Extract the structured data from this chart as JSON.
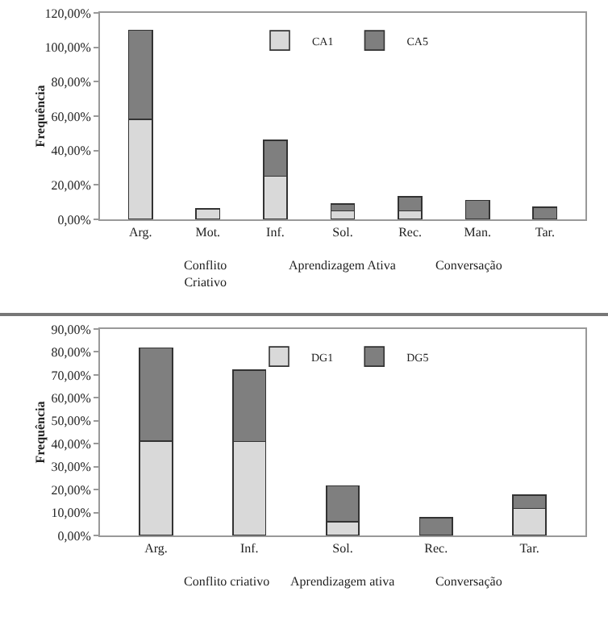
{
  "chart_data": [
    {
      "type": "bar",
      "stacked": true,
      "ylabel": "Frequência",
      "categories": [
        "Arg.",
        "Mot.",
        "Inf.",
        "Sol.",
        "Rec.",
        "Man.",
        "Tar."
      ],
      "series": [
        {
          "name": "CA1",
          "color": "#d9d9d9",
          "values": [
            58,
            6,
            25,
            5,
            5,
            null,
            null
          ]
        },
        {
          "name": "CA5",
          "color": "#7f7f7f",
          "values": [
            52,
            null,
            21,
            4,
            8,
            11,
            7
          ]
        }
      ],
      "ylim": [
        0,
        120
      ],
      "yticks": [
        {
          "value": 0,
          "label": "0,00%"
        },
        {
          "value": 20,
          "label": "20,00%"
        },
        {
          "value": 40,
          "label": "40,00%"
        },
        {
          "value": 60,
          "label": "60,00%"
        },
        {
          "value": 80,
          "label": "80,00%"
        },
        {
          "value": 100,
          "label": "100,00%"
        },
        {
          "value": 120,
          "label": "120,00%"
        }
      ],
      "grid": false,
      "legend": "top",
      "annotations": [
        "Conflito\nCriativo",
        "Aprendizagem Ativa",
        "Conversação"
      ]
    },
    {
      "type": "bar",
      "stacked": true,
      "ylabel": "Frequência",
      "categories": [
        "Arg.",
        "Inf.",
        "Sol.",
        "Rec.",
        "Tar."
      ],
      "series": [
        {
          "name": "DG1",
          "color": "#d9d9d9",
          "values": [
            41.1,
            41,
            6,
            null,
            11.8
          ]
        },
        {
          "name": "DG5",
          "color": "#7f7f7f",
          "values": [
            40.7,
            31,
            15.6,
            7.8,
            5.8
          ]
        }
      ],
      "ylim": [
        0,
        90
      ],
      "yticks": [
        {
          "value": 0,
          "label": "0,00%"
        },
        {
          "value": 10,
          "label": "10,00%"
        },
        {
          "value": 20,
          "label": "20,00%"
        },
        {
          "value": 30,
          "label": "30,00%"
        },
        {
          "value": 40,
          "label": "40,00%"
        },
        {
          "value": 50,
          "label": "50,00%"
        },
        {
          "value": 60,
          "label": "60,00%"
        },
        {
          "value": 70,
          "label": "70,00%"
        },
        {
          "value": 80,
          "label": "80,00%"
        },
        {
          "value": 90,
          "label": "90,00%"
        }
      ],
      "grid": false,
      "legend": "top",
      "annotations": [
        "Conflito criativo",
        "Aprendizagem ativa",
        "Conversação"
      ]
    }
  ]
}
